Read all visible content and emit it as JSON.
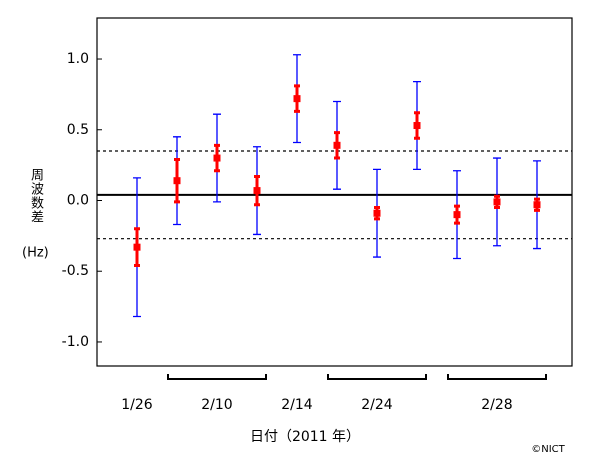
{
  "chart_data": {
    "type": "errorbar",
    "categories": [
      "1/26",
      null,
      "2/10",
      null,
      "2/14",
      null,
      "2/24",
      null,
      null,
      "2/28",
      null
    ],
    "series": [
      {
        "color": "#ff0000",
        "values": [
          -0.33,
          0.14,
          0.3,
          0.07,
          0.72,
          0.39,
          -0.09,
          0.53,
          -0.1,
          -0.01,
          -0.03
        ],
        "errors": [
          0.13,
          0.15,
          0.09,
          0.1,
          0.09,
          0.09,
          0.04,
          0.09,
          0.06,
          0.04,
          0.04
        ],
        "error_color": "#0000ff",
        "outer_errors": [
          0.49,
          0.31,
          0.31,
          0.31,
          0.31,
          0.31,
          0.31,
          0.31,
          0.31,
          0.31,
          0.31
        ]
      }
    ],
    "hlines": [
      {
        "value": 0.04,
        "style": "solid"
      },
      {
        "value": 0.35,
        "style": "dashed"
      },
      {
        "value": -0.27,
        "style": "dashed"
      }
    ],
    "ylim": [
      -1.17,
      1.29
    ],
    "yticks": [
      {
        "value": -1.0,
        "label": "-1.0"
      },
      {
        "value": -0.5,
        "label": "-0.5"
      },
      {
        "value": 0.0,
        "label": "0.0"
      },
      {
        "value": 0.5,
        "label": "0.5"
      },
      {
        "value": 1.0,
        "label": "1.0"
      }
    ],
    "ylabel": "周波数差",
    "yunit": "(Hz)",
    "xlabel": "日付（2011 年）",
    "credit": "©NICT"
  }
}
